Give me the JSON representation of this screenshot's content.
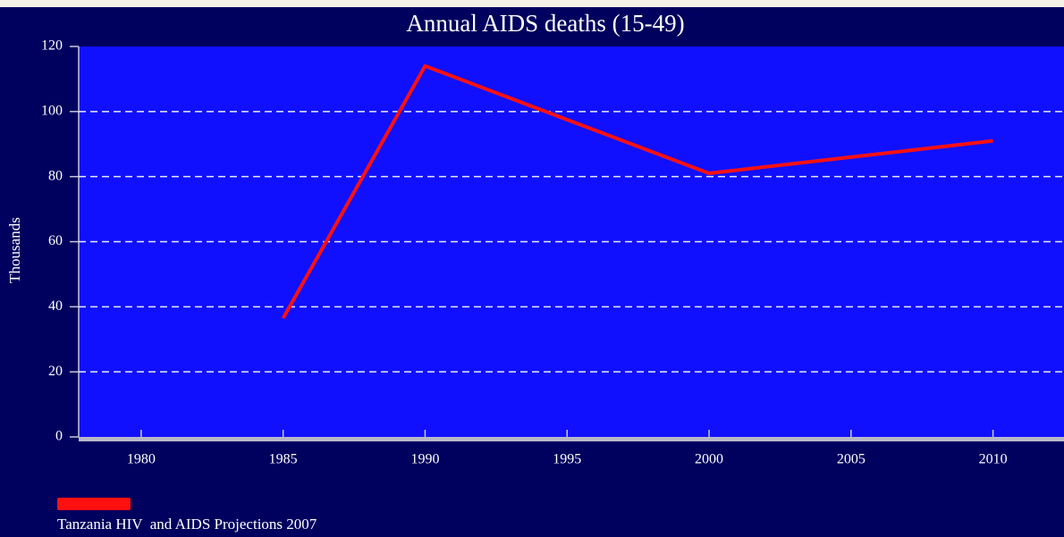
{
  "chart_data": {
    "type": "line",
    "title": "Annual AIDS deaths (15-49)",
    "y_label": "Thousands",
    "x": [
      1985,
      1990,
      2000,
      2010
    ],
    "series": [
      {
        "name": "Tanzania HIV  and AIDS Projections 2007",
        "color": "#ff1010",
        "values": [
          36.5,
          114,
          81,
          91
        ]
      }
    ],
    "xlim": [
      1977.8,
      2012.5
    ],
    "xticks": [
      1980,
      1985,
      1990,
      1995,
      2000,
      2005,
      2010
    ],
    "ylim": [
      0,
      120
    ],
    "yticks": [
      0,
      20,
      40,
      60,
      80,
      100,
      120
    ],
    "grid": true,
    "legend": "bottom-left"
  }
}
